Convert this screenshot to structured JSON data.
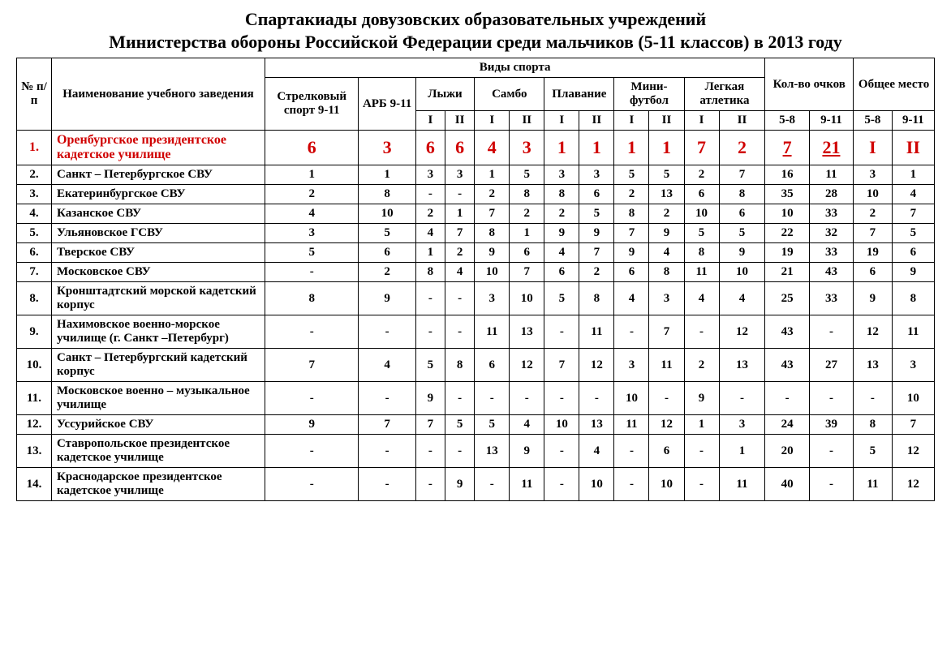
{
  "title_line1": "Спартакиады довузовских образовательных учреждений",
  "title_line2": "Министерства обороны Российской Федерации среди мальчиков  (5-11 классов) в 2013 году",
  "headers": {
    "num": "№ п/п",
    "name": "Наименование учебного заведения",
    "sports_group": "Виды спорта",
    "points_group": "Кол-во очков",
    "place_group": "Общее место",
    "shooting": "Стрелковый спорт 9-11",
    "arb": "АРБ 9-11",
    "ski": "Лыжи",
    "sambo": "Самбо",
    "swim": "Плавание",
    "football": "Мини-футбол",
    "athletics": "Легкая атлетика",
    "sub_I": "I",
    "sub_II": "II",
    "age_5_8": "5-8",
    "age_9_11": "9-11"
  },
  "rows": [
    {
      "n": "1.",
      "highlight": true,
      "name": "Оренбургское президентское кадетское училище",
      "shoot": "6",
      "arb": "3",
      "ski": [
        "6",
        "6"
      ],
      "sambo": [
        "4",
        "3"
      ],
      "swim": [
        "1",
        "1"
      ],
      "foot": [
        "1",
        "1"
      ],
      "ath": [
        "7",
        "2"
      ],
      "points": [
        "7",
        "21"
      ],
      "points_underline": [
        true,
        true
      ],
      "place": [
        "I",
        "II"
      ]
    },
    {
      "n": "2.",
      "name": "Санкт – Петербургское СВУ",
      "shoot": "1",
      "arb": "1",
      "ski": [
        "3",
        "3"
      ],
      "sambo": [
        "1",
        "5"
      ],
      "swim": [
        "3",
        "3"
      ],
      "foot": [
        "5",
        "5"
      ],
      "ath": [
        "2",
        "7"
      ],
      "points": [
        "16",
        "11"
      ],
      "place": [
        "3",
        "1"
      ]
    },
    {
      "n": "3.",
      "name": "Екатеринбургское СВУ",
      "shoot": "2",
      "arb": "8",
      "ski": [
        "-",
        "-"
      ],
      "sambo": [
        "2",
        "8"
      ],
      "swim": [
        "8",
        "6"
      ],
      "foot": [
        "2",
        "13"
      ],
      "ath": [
        "6",
        "8"
      ],
      "points": [
        "35",
        "28"
      ],
      "place": [
        "10",
        "4"
      ]
    },
    {
      "n": "4.",
      "name": "Казанское СВУ",
      "shoot": "4",
      "arb": "10",
      "ski": [
        "2",
        "1"
      ],
      "sambo": [
        "7",
        "2"
      ],
      "swim": [
        "2",
        "5"
      ],
      "foot": [
        "8",
        "2"
      ],
      "ath": [
        "10",
        "6"
      ],
      "points": [
        "10",
        "33"
      ],
      "place": [
        "2",
        "7"
      ]
    },
    {
      "n": "5.",
      "name": "Ульяновское ГСВУ",
      "shoot": "3",
      "arb": "5",
      "ski": [
        "4",
        "7"
      ],
      "sambo": [
        "8",
        "1"
      ],
      "swim": [
        "9",
        "9"
      ],
      "foot": [
        "7",
        "9"
      ],
      "ath": [
        "5",
        "5"
      ],
      "points": [
        "22",
        "32"
      ],
      "place": [
        "7",
        "5"
      ]
    },
    {
      "n": "6.",
      "name": "Тверское СВУ",
      "shoot": "5",
      "arb": "6",
      "ski": [
        "1",
        "2"
      ],
      "sambo": [
        "9",
        "6"
      ],
      "swim": [
        "4",
        "7"
      ],
      "foot": [
        "9",
        "4"
      ],
      "ath": [
        "8",
        "9"
      ],
      "points": [
        "19",
        "33"
      ],
      "place": [
        "19",
        "6"
      ]
    },
    {
      "n": "7.",
      "name": "Московское СВУ",
      "shoot": "-",
      "arb": "2",
      "ski": [
        "8",
        "4"
      ],
      "sambo": [
        "10",
        "7"
      ],
      "swim": [
        "6",
        "2"
      ],
      "foot": [
        "6",
        "8"
      ],
      "ath": [
        "11",
        "10"
      ],
      "points": [
        "21",
        "43"
      ],
      "place": [
        "6",
        "9"
      ]
    },
    {
      "n": "8.",
      "name": "Кронштадтский морской кадетский корпус",
      "shoot": "8",
      "arb": "9",
      "ski": [
        "-",
        "-"
      ],
      "sambo": [
        "3",
        "10"
      ],
      "swim": [
        "5",
        "8"
      ],
      "foot": [
        "4",
        "3"
      ],
      "ath": [
        "4",
        "4"
      ],
      "points": [
        "25",
        "33"
      ],
      "place": [
        "9",
        "8"
      ]
    },
    {
      "n": "9.",
      "name": "Нахимовское военно-морское училище (г. Санкт –Петербург)",
      "shoot": "-",
      "arb": "-",
      "ski": [
        "-",
        "-"
      ],
      "sambo": [
        "11",
        "13"
      ],
      "swim": [
        "-",
        "11"
      ],
      "foot": [
        "-",
        "7"
      ],
      "ath": [
        "-",
        "12"
      ],
      "points": [
        "43",
        "-"
      ],
      "place": [
        "12",
        "11"
      ]
    },
    {
      "n": "10.",
      "name": "Санкт – Петербургский кадетский корпус",
      "shoot": "7",
      "arb": "4",
      "ski": [
        "5",
        "8"
      ],
      "sambo": [
        "6",
        "12"
      ],
      "swim": [
        "7",
        "12"
      ],
      "foot": [
        "3",
        "11"
      ],
      "ath": [
        "2",
        "13"
      ],
      "points": [
        "43",
        "27"
      ],
      "place": [
        "13",
        "3"
      ]
    },
    {
      "n": "11.",
      "name": "Московское военно – музыкальное училище",
      "shoot": "-",
      "arb": "-",
      "ski": [
        "9",
        "-"
      ],
      "sambo": [
        "-",
        "-"
      ],
      "swim": [
        "-",
        "-"
      ],
      "foot": [
        "10",
        "-"
      ],
      "ath": [
        "9",
        "-"
      ],
      "points": [
        "-",
        "-"
      ],
      "place": [
        "-",
        "10"
      ]
    },
    {
      "n": "12.",
      "name": "Уссурийское СВУ",
      "shoot": "9",
      "arb": "7",
      "ski": [
        "7",
        "5"
      ],
      "sambo": [
        "5",
        "4"
      ],
      "swim": [
        "10",
        "13"
      ],
      "foot": [
        "11",
        "12"
      ],
      "ath": [
        "1",
        "3"
      ],
      "points": [
        "24",
        "39"
      ],
      "place": [
        "8",
        "7"
      ]
    },
    {
      "n": "13.",
      "name": "Ставропольское президентское кадетское училище",
      "shoot": "-",
      "arb": "-",
      "ski": [
        "-",
        "-"
      ],
      "sambo": [
        "13",
        "9"
      ],
      "swim": [
        "-",
        "4"
      ],
      "foot": [
        "-",
        "6"
      ],
      "ath": [
        "-",
        "1"
      ],
      "points": [
        "20",
        "-"
      ],
      "place": [
        "5",
        "12"
      ]
    },
    {
      "n": "14.",
      "name": "Краснодарское президентское кадетское училище",
      "shoot": "-",
      "arb": "-",
      "ski": [
        "-",
        "9"
      ],
      "sambo": [
        "-",
        "11"
      ],
      "swim": [
        "-",
        "10"
      ],
      "foot": [
        "-",
        "10"
      ],
      "ath": [
        "-",
        "11"
      ],
      "points": [
        "40",
        "-"
      ],
      "place": [
        "11",
        "12"
      ]
    }
  ],
  "styling": {
    "background_color": "#ffffff",
    "text_color": "#000000",
    "highlight_color": "#d00000",
    "border_color": "#000000",
    "font_family": "Times New Roman",
    "base_fontsize": 15,
    "title_fontsize": 22,
    "highlight_val_fontsize": 22
  }
}
